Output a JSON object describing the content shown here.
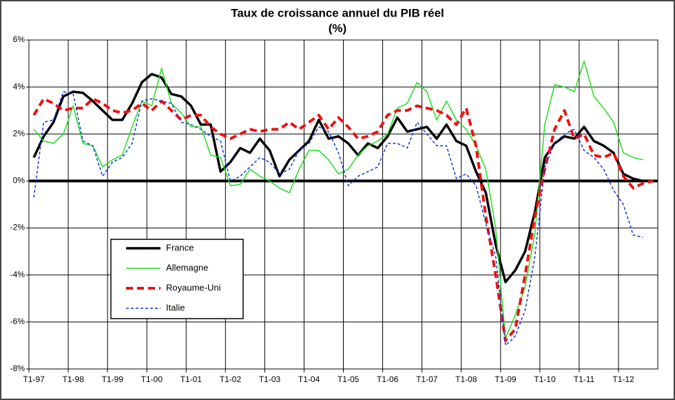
{
  "chart_data": {
    "type": "line",
    "title": "Taux de croissance annuel du PIB réel",
    "subtitle": "(%)",
    "categories": [
      "T1-97",
      null,
      null,
      null,
      "T1-98",
      null,
      null,
      null,
      "T1-99",
      null,
      null,
      null,
      "T1-00",
      null,
      null,
      null,
      "T1-01",
      null,
      null,
      null,
      "T1-02",
      null,
      null,
      null,
      "T1-03",
      null,
      null,
      null,
      "T1-04",
      null,
      null,
      null,
      "T1-05",
      null,
      null,
      null,
      "T1-06",
      null,
      null,
      null,
      "T1-07",
      null,
      null,
      null,
      "T1-08",
      null,
      null,
      null,
      "T1-09",
      null,
      null,
      null,
      "T1-10",
      null,
      null,
      null,
      "T1-11",
      null,
      null,
      null,
      "T1-12",
      null,
      null,
      null
    ],
    "series": [
      {
        "name": "France",
        "color": "#000000",
        "width": 3.5,
        "dash": "solid",
        "values": [
          1.0,
          1.9,
          2.5,
          3.6,
          3.8,
          3.75,
          3.4,
          3.0,
          2.6,
          2.6,
          3.3,
          4.2,
          4.55,
          4.4,
          3.7,
          3.6,
          3.2,
          2.4,
          2.4,
          0.4,
          0.8,
          1.4,
          1.2,
          1.8,
          1.3,
          0.2,
          0.9,
          1.3,
          1.7,
          2.6,
          1.8,
          1.9,
          1.6,
          1.1,
          1.6,
          1.4,
          1.9,
          2.7,
          2.1,
          2.2,
          2.3,
          1.8,
          2.4,
          1.7,
          1.5,
          0.4,
          -0.5,
          -2.7,
          -4.3,
          -3.8,
          -3.0,
          -1.3,
          1.0,
          1.6,
          1.9,
          1.8,
          2.3,
          1.7,
          1.5,
          1.2,
          0.3,
          0.1,
          0.0,
          0.0
        ]
      },
      {
        "name": "Allemagne",
        "color": "#22dd22",
        "width": 1.5,
        "dash": "solid",
        "values": [
          2.2,
          1.7,
          1.6,
          2.0,
          3.2,
          1.6,
          1.5,
          0.6,
          0.9,
          1.1,
          2.3,
          3.4,
          3.2,
          4.8,
          3.3,
          2.9,
          2.3,
          2.3,
          1.1,
          1.0,
          -0.2,
          -0.15,
          0.5,
          0.2,
          0.0,
          -0.3,
          -0.5,
          0.5,
          1.3,
          1.3,
          0.9,
          0.3,
          0.5,
          1.1,
          1.5,
          1.7,
          2.0,
          3.1,
          3.3,
          4.2,
          3.8,
          2.6,
          3.4,
          2.6,
          2.2,
          1.5,
          0.5,
          -2.0,
          -6.7,
          -5.7,
          -4.5,
          -2.2,
          2.4,
          4.1,
          4.0,
          3.8,
          5.1,
          3.6,
          3.1,
          2.5,
          1.2,
          1.0,
          0.9,
          null
        ]
      },
      {
        "name": "Royaume-Uni",
        "color": "#ee1111",
        "width": 4,
        "dash": "10 6",
        "values": [
          2.8,
          3.5,
          3.3,
          3.0,
          3.1,
          3.1,
          3.5,
          3.3,
          3.0,
          2.9,
          3.0,
          3.3,
          3.0,
          3.4,
          3.0,
          2.6,
          2.8,
          2.8,
          2.3,
          2.0,
          1.8,
          2.0,
          2.2,
          2.1,
          2.2,
          2.2,
          2.5,
          2.2,
          2.5,
          2.8,
          2.2,
          2.7,
          2.3,
          1.8,
          1.9,
          2.1,
          2.8,
          3.0,
          3.0,
          3.2,
          3.1,
          3.0,
          2.8,
          2.4,
          3.1,
          1.5,
          -1.5,
          -4.0,
          -6.8,
          -6.3,
          -4.0,
          -1.5,
          0.5,
          2.2,
          3.0,
          1.8,
          2.0,
          1.1,
          1.0,
          1.2,
          0.2,
          -0.3,
          -0.1,
          0.0
        ]
      },
      {
        "name": "Italie",
        "color": "#1133dd",
        "width": 1.5,
        "dash": "4 3",
        "values": [
          -0.7,
          2.5,
          2.6,
          3.8,
          3.7,
          1.7,
          1.5,
          0.2,
          0.8,
          1.0,
          1.6,
          3.4,
          3.5,
          3.4,
          3.3,
          2.5,
          2.4,
          2.2,
          1.9,
          1.7,
          0.0,
          0.2,
          0.6,
          1.0,
          0.8,
          0.3,
          0.5,
          1.3,
          1.6,
          2.3,
          2.1,
          1.2,
          -0.2,
          0.2,
          0.4,
          0.6,
          1.6,
          1.6,
          1.4,
          2.5,
          2.0,
          1.5,
          1.5,
          0.1,
          0.3,
          -0.2,
          -1.8,
          -3.2,
          -7.0,
          -6.6,
          -5.5,
          -3.2,
          0.6,
          1.6,
          2.0,
          2.2,
          1.3,
          1.0,
          0.5,
          -0.4,
          -1.0,
          -2.3,
          -2.4,
          null
        ]
      }
    ],
    "ylim": [
      -8,
      6
    ],
    "yticks": [
      {
        "value": -8,
        "label": "-8%"
      },
      {
        "value": -6,
        "label": "-6%"
      },
      {
        "value": -4,
        "label": "-4%"
      },
      {
        "value": -2,
        "label": "-2%"
      },
      {
        "value": 0,
        "label": "0%"
      },
      {
        "value": 2,
        "label": "2%"
      },
      {
        "value": 4,
        "label": "4%"
      },
      {
        "value": 6,
        "label": "6%"
      }
    ],
    "grid": true,
    "legend": "lower-left"
  }
}
